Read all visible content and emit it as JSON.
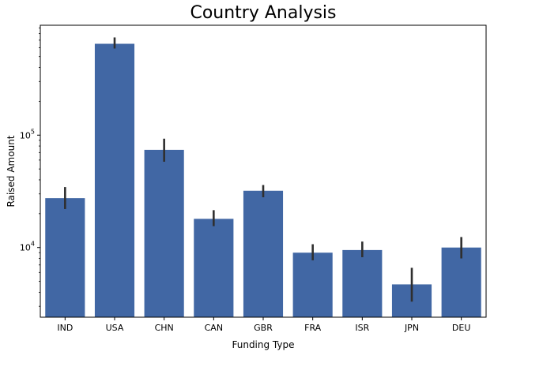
{
  "chart_data": {
    "type": "bar",
    "title": "Country Analysis",
    "xlabel": "Funding Type",
    "ylabel": "Raised Amount",
    "yscale": "log",
    "ylim": [
      2400,
      950000
    ],
    "yticks": [
      {
        "value": 10000,
        "base": "10",
        "exp": "4"
      },
      {
        "value": 100000,
        "base": "10",
        "exp": "5"
      }
    ],
    "categories": [
      "IND",
      "USA",
      "CHN",
      "CAN",
      "GBR",
      "FRA",
      "ISR",
      "JPN",
      "DEU"
    ],
    "values": [
      27500,
      650000,
      74000,
      18000,
      32000,
      9000,
      9500,
      4700,
      10000
    ],
    "error_low": [
      22000,
      590000,
      58000,
      15500,
      28000,
      7700,
      8200,
      3300,
      8000
    ],
    "error_high": [
      34500,
      740000,
      93000,
      21500,
      36000,
      10700,
      11300,
      6600,
      12400
    ],
    "bar_color": "#4167a4",
    "error_color": "#2f2f2f",
    "grid": false,
    "legend": "none"
  }
}
